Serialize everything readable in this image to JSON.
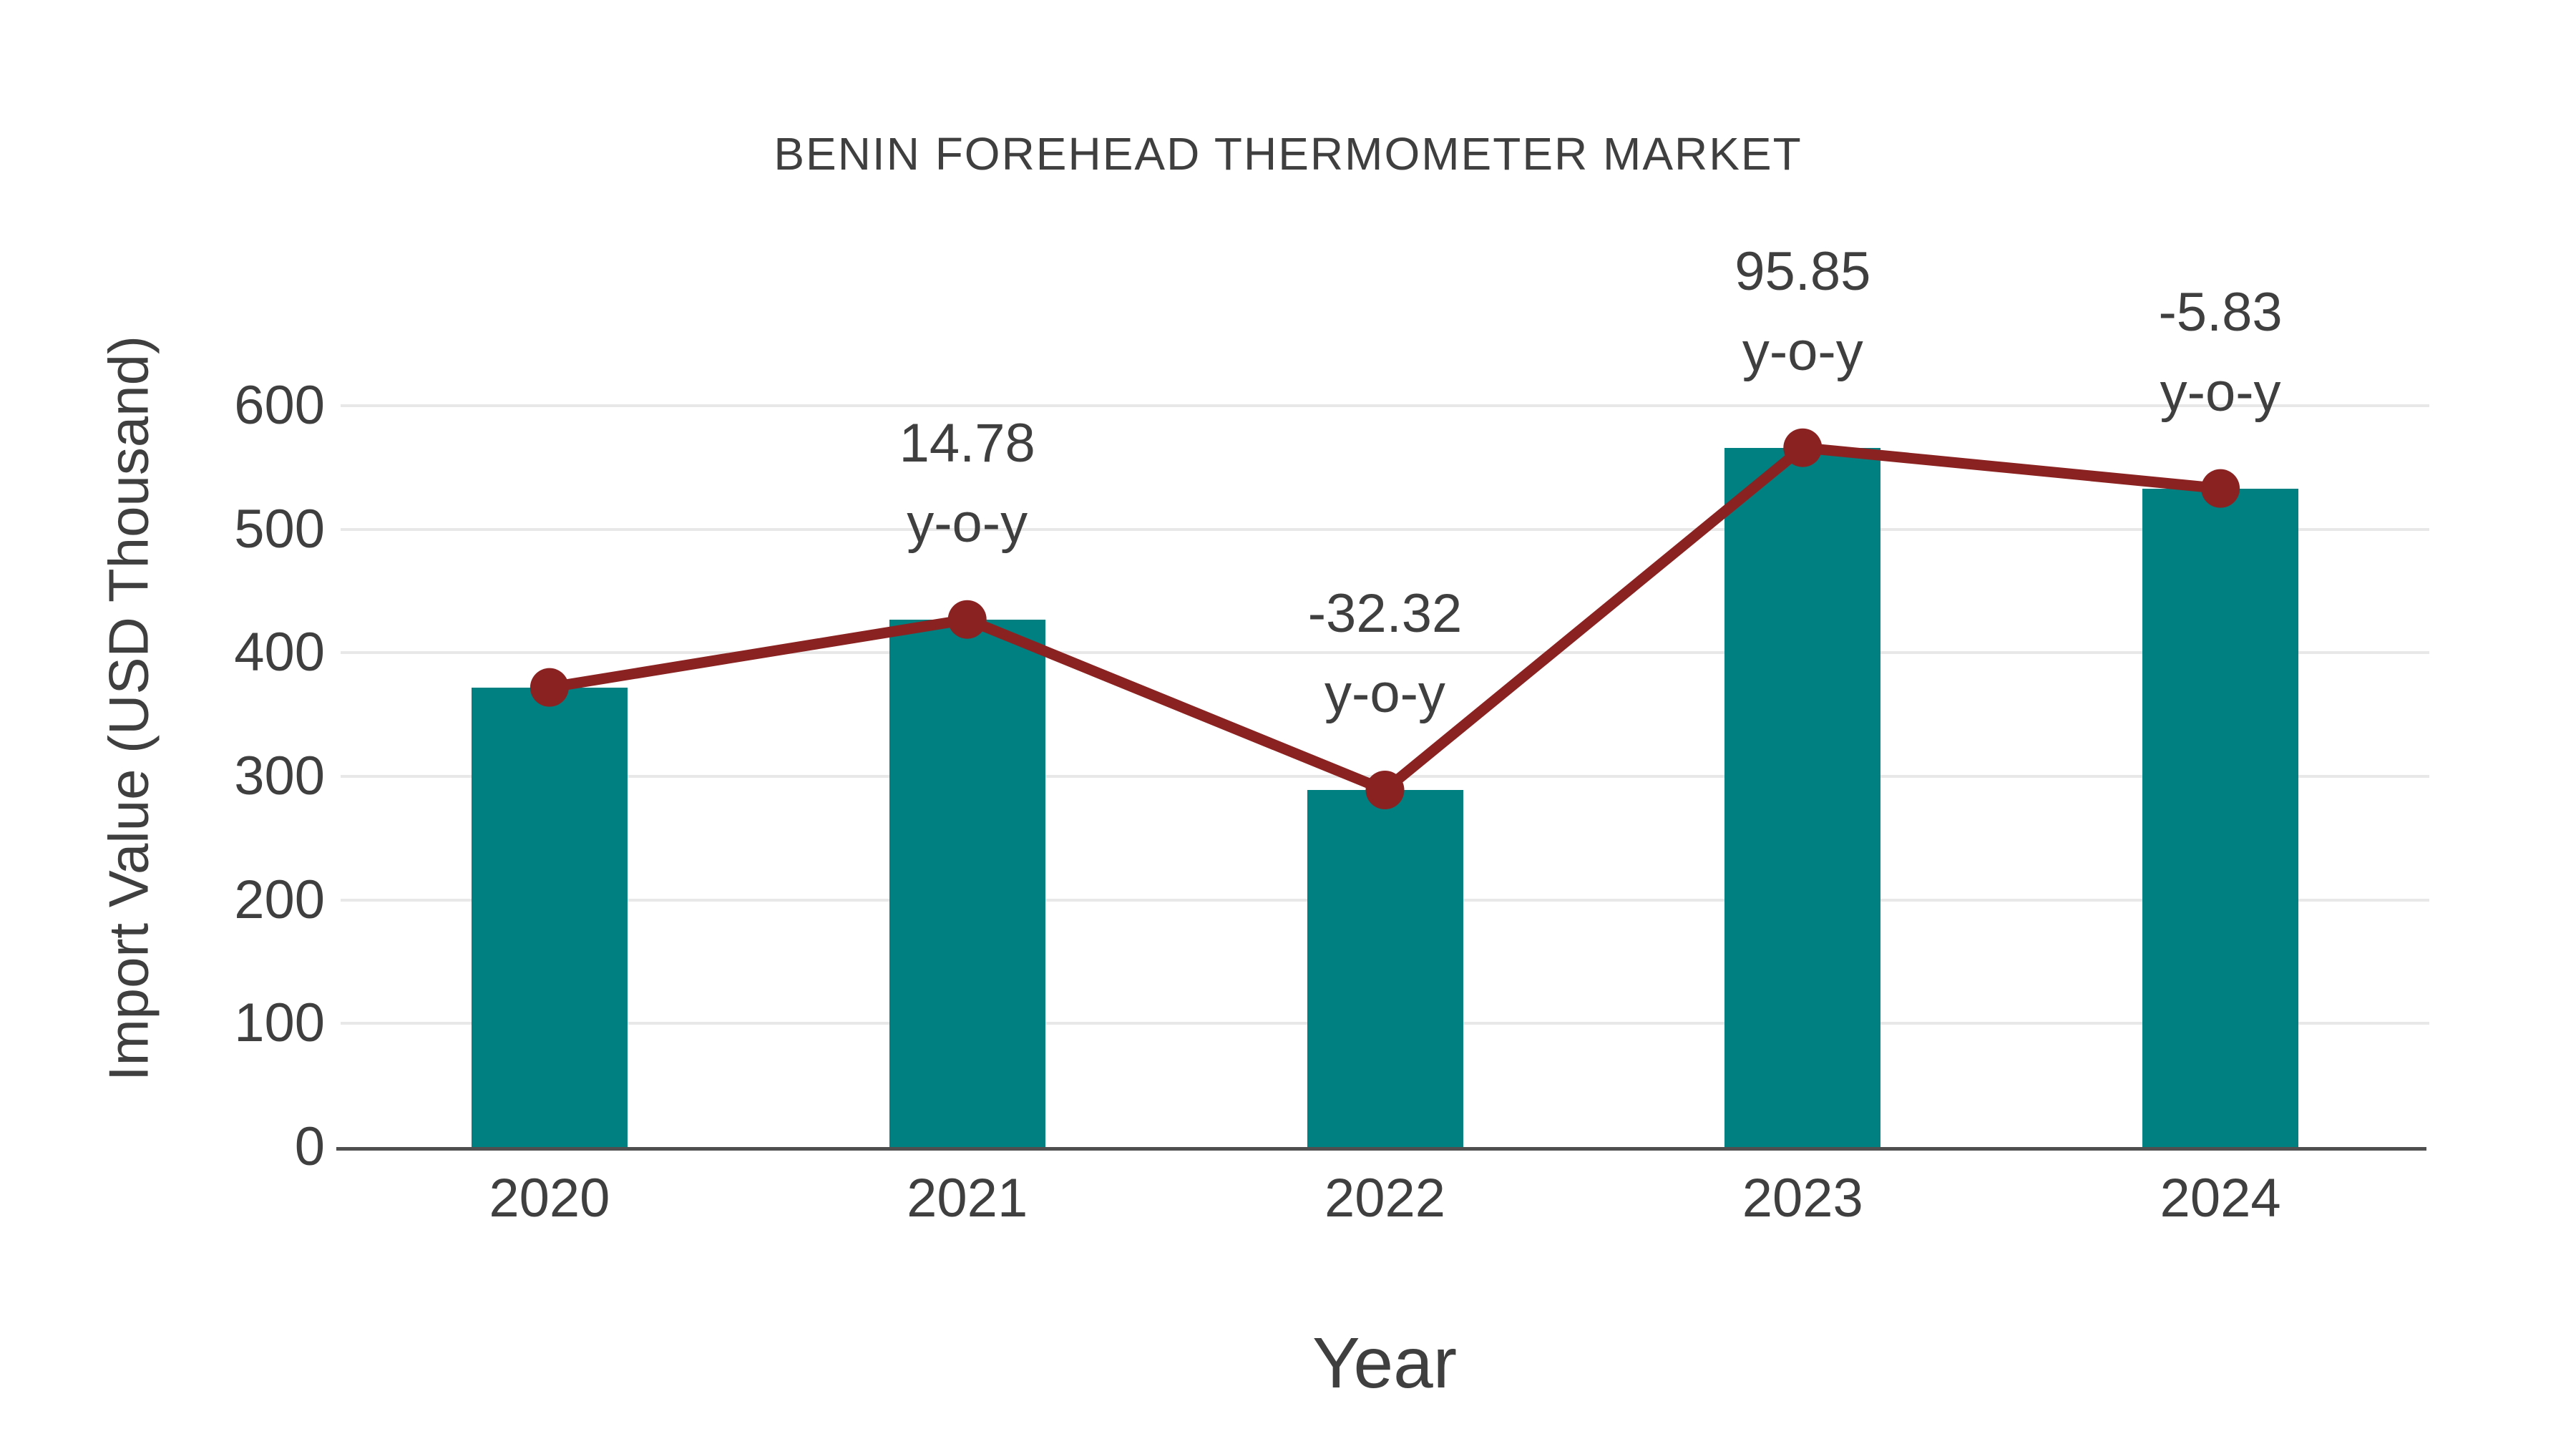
{
  "title": "BENIN FOREHEAD THERMOMETER MARKET",
  "chart_data": {
    "type": "bar",
    "title": "BENIN FOREHEAD THERMOMETER MARKET",
    "categories": [
      "2020",
      "2021",
      "2022",
      "2023",
      "2024"
    ],
    "series": [
      {
        "name": "Import Value",
        "type": "bar",
        "values": [
          372,
          427,
          289,
          566,
          533
        ],
        "color": "#008080"
      },
      {
        "name": "Trend line",
        "type": "line",
        "values": [
          372,
          427,
          289,
          566,
          533
        ],
        "color": "#8b2222",
        "yoy_percent": [
          null,
          14.78,
          -32.32,
          95.85,
          -5.83
        ],
        "annotations": [
          null,
          "14.78",
          "-32.32",
          "95.85",
          "-5.83"
        ],
        "annotation_suffix": "y-o-y"
      }
    ],
    "xlabel": "Year",
    "ylabel": "Import Value (USD Thousand)",
    "ylim": [
      0,
      600
    ],
    "yticks": [
      0,
      100,
      200,
      300,
      400,
      500,
      600
    ],
    "grid": "horizontal",
    "legend": "none"
  },
  "colors": {
    "bar": "#008080",
    "line": "#8b2222",
    "text": "#3f3f3f",
    "gridline": "#e8e8e8",
    "axis": "#4f4f4f",
    "background": "#ffffff"
  }
}
